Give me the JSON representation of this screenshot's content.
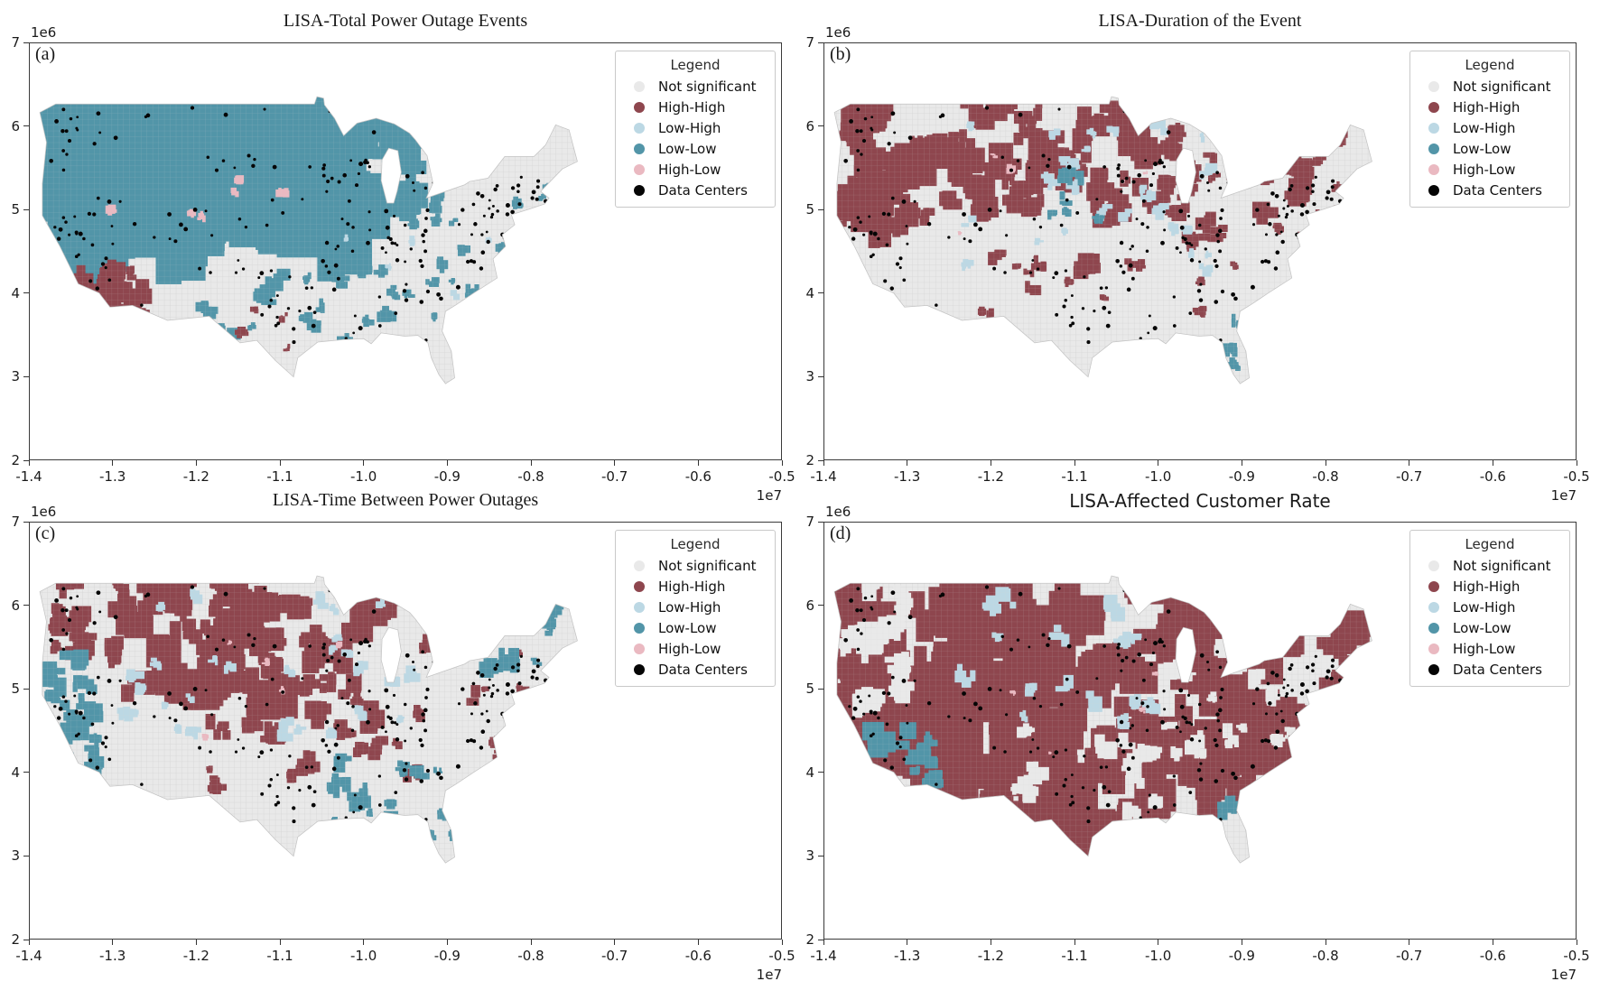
{
  "figure": {
    "background": "#ffffff",
    "axis": {
      "x_ticks": [
        "-1.4",
        "-1.3",
        "-1.2",
        "-1.1",
        "-1.0",
        "-0.9",
        "-0.8",
        "-0.7",
        "-0.6",
        "-0.5"
      ],
      "x_offset_label": "1e7",
      "y_ticks": [
        "7",
        "6",
        "5",
        "4",
        "3",
        "2"
      ],
      "y_offset_label": "1e6",
      "x_range": [
        -14000000,
        -5000000
      ],
      "y_range": [
        2000000,
        7000000
      ]
    },
    "legend": {
      "title": "Legend",
      "entries": [
        {
          "key": "not_significant",
          "label": "Not significant",
          "color": "#e9e9e9"
        },
        {
          "key": "high_high",
          "label": "High-High",
          "color": "#8e464e"
        },
        {
          "key": "low_high",
          "label": "Low-High",
          "color": "#bcd8e4"
        },
        {
          "key": "low_low",
          "label": "Low-Low",
          "color": "#5295a8"
        },
        {
          "key": "high_low",
          "label": "High-Low",
          "color": "#eab9c1"
        },
        {
          "key": "data_centers",
          "label": "Data Centers",
          "color": "#050505"
        }
      ]
    },
    "palette": {
      "not_significant": "#e9e9e9",
      "high_high": "#8e464e",
      "low_high": "#bcd8e4",
      "low_low": "#5295a8",
      "high_low": "#eab9c1",
      "data_centers": "#050505",
      "county_line": "#d2d2d2",
      "map_edge": "#c4c4c4"
    }
  },
  "chart_data": {
    "type": "heatmap",
    "subtype": "lisa-cluster-choropleth-grid",
    "grid": "2x2 panels, continental United States county maps with shared legend and identical axes",
    "panels": [
      {
        "id": "a",
        "label": "(a)",
        "title": "LISA-Total Power Outage Events",
        "title_font": "serif",
        "pattern_summary": "Huge contiguous Low-Low (teal) cluster over the Northwest, Rockies and Great Plains extending into the upper Midwest; scattered Low-Low through the Midwest, South and Appalachia; High-High (maroon) cluster in southern California; East Coast mostly not significant with dense black data-center dots; a few pink High-Low specks.",
        "cluster_regions": [
          {
            "cluster": "low_low",
            "u": 0.03,
            "v": 0.0,
            "w": 0.57,
            "h": 0.55,
            "n": 90,
            "size": 26
          },
          {
            "cluster": "low_low",
            "u": 0.5,
            "v": 0.02,
            "w": 0.22,
            "h": 0.4,
            "n": 30,
            "size": 14
          },
          {
            "cluster": "low_low",
            "u": 0.58,
            "v": 0.3,
            "w": 0.4,
            "h": 0.5,
            "n": 40,
            "size": 6
          },
          {
            "cluster": "low_low",
            "u": 0.3,
            "v": 0.58,
            "w": 0.32,
            "h": 0.28,
            "n": 16,
            "size": 7
          },
          {
            "cluster": "high_high",
            "u": 0.09,
            "v": 0.6,
            "w": 0.1,
            "h": 0.16,
            "n": 9,
            "size": 11
          },
          {
            "cluster": "high_high",
            "u": 0.25,
            "v": 0.72,
            "w": 0.45,
            "h": 0.22,
            "n": 5,
            "size": 4
          },
          {
            "cluster": "high_low",
            "u": 0.12,
            "v": 0.12,
            "w": 0.35,
            "h": 0.35,
            "n": 6,
            "size": 4
          },
          {
            "cluster": "low_high",
            "u": 0.55,
            "v": 0.35,
            "w": 0.35,
            "h": 0.35,
            "n": 5,
            "size": 3
          }
        ]
      },
      {
        "id": "b",
        "label": "(b)",
        "title": "LISA-Duration of the Event",
        "title_font": "serif",
        "pattern_summary": "Many High-High (maroon) clusters along the West Coast, across the northern plains and Midwest, and in the Northeast/Appalachia; scattered Low-High (light blue) patches through the center; small Low-Low (teal) patches in the central U.S. and Florida; remainder not significant.",
        "cluster_regions": [
          {
            "cluster": "high_high",
            "u": 0.0,
            "v": 0.02,
            "w": 0.16,
            "h": 0.45,
            "n": 28,
            "size": 15
          },
          {
            "cluster": "high_high",
            "u": 0.16,
            "v": 0.0,
            "w": 0.5,
            "h": 0.42,
            "n": 48,
            "size": 13
          },
          {
            "cluster": "high_high",
            "u": 0.62,
            "v": 0.12,
            "w": 0.34,
            "h": 0.38,
            "n": 32,
            "size": 9
          },
          {
            "cluster": "high_high",
            "u": 0.28,
            "v": 0.48,
            "w": 0.5,
            "h": 0.34,
            "n": 16,
            "size": 7
          },
          {
            "cluster": "low_high",
            "u": 0.22,
            "v": 0.08,
            "w": 0.48,
            "h": 0.52,
            "n": 26,
            "size": 6
          },
          {
            "cluster": "low_low",
            "u": 0.4,
            "v": 0.26,
            "w": 0.14,
            "h": 0.2,
            "n": 8,
            "size": 8
          },
          {
            "cluster": "low_low",
            "u": 0.72,
            "v": 0.76,
            "w": 0.06,
            "h": 0.2,
            "n": 7,
            "size": 6
          },
          {
            "cluster": "high_low",
            "u": 0.2,
            "v": 0.2,
            "w": 0.5,
            "h": 0.4,
            "n": 5,
            "size": 3
          }
        ]
      },
      {
        "id": "c",
        "label": "(c)",
        "title": "LISA-Time Between Power Outages",
        "title_font": "serif",
        "pattern_summary": "High-High (maroon) blocks across the northern plains, Midwest and scattered through the center/east; Low-Low (teal) along the California coast, the Gulf Coast/Florida and New England; scattered Low-High (light blue) patches; remainder not significant.",
        "cluster_regions": [
          {
            "cluster": "high_high",
            "u": 0.14,
            "v": 0.0,
            "w": 0.52,
            "h": 0.42,
            "n": 55,
            "size": 15
          },
          {
            "cluster": "high_high",
            "u": 0.02,
            "v": 0.02,
            "w": 0.14,
            "h": 0.28,
            "n": 12,
            "size": 9
          },
          {
            "cluster": "high_high",
            "u": 0.3,
            "v": 0.44,
            "w": 0.42,
            "h": 0.3,
            "n": 20,
            "size": 9
          },
          {
            "cluster": "high_high",
            "u": 0.66,
            "v": 0.24,
            "w": 0.3,
            "h": 0.38,
            "n": 16,
            "size": 6
          },
          {
            "cluster": "low_low",
            "u": 0.0,
            "v": 0.28,
            "w": 0.11,
            "h": 0.5,
            "n": 22,
            "size": 9
          },
          {
            "cluster": "low_low",
            "u": 0.52,
            "v": 0.64,
            "w": 0.26,
            "h": 0.3,
            "n": 16,
            "size": 7
          },
          {
            "cluster": "low_low",
            "u": 0.84,
            "v": 0.1,
            "w": 0.15,
            "h": 0.26,
            "n": 10,
            "size": 7
          },
          {
            "cluster": "low_high",
            "u": 0.14,
            "v": 0.06,
            "w": 0.55,
            "h": 0.52,
            "n": 30,
            "size": 6
          },
          {
            "cluster": "high_low",
            "u": 0.3,
            "v": 0.2,
            "w": 0.4,
            "h": 0.4,
            "n": 5,
            "size": 3
          }
        ]
      },
      {
        "id": "d",
        "label": "(d)",
        "title": "LISA-Affected Customer Rate",
        "title_font": "sans",
        "pattern_summary": "High-High (maroon) dominates nearly the entire country; not-significant pockets in the Pacific Northwest, Texas/Oklahoma and the eastern seaboard; Low-High (light blue) patches in the plains and west; Low-Low (teal) cluster on the southern California coast and small ones in Florida.",
        "cluster_regions": [
          {
            "cluster": "high_high",
            "u": 0.0,
            "v": 0.0,
            "w": 0.96,
            "h": 0.88,
            "n": 130,
            "size": 24
          },
          {
            "cluster": "not_significant",
            "u": 0.02,
            "v": 0.04,
            "w": 0.13,
            "h": 0.42,
            "n": 16,
            "size": 10
          },
          {
            "cluster": "not_significant",
            "u": 0.3,
            "v": 0.52,
            "w": 0.3,
            "h": 0.3,
            "n": 10,
            "size": 9
          },
          {
            "cluster": "not_significant",
            "u": 0.58,
            "v": 0.22,
            "w": 0.34,
            "h": 0.45,
            "n": 22,
            "size": 8
          },
          {
            "cluster": "low_high",
            "u": 0.22,
            "v": 0.08,
            "w": 0.38,
            "h": 0.45,
            "n": 15,
            "size": 9
          },
          {
            "cluster": "low_low",
            "u": 0.07,
            "v": 0.56,
            "w": 0.12,
            "h": 0.16,
            "n": 8,
            "size": 10
          },
          {
            "cluster": "low_low",
            "u": 0.72,
            "v": 0.78,
            "w": 0.05,
            "h": 0.16,
            "n": 4,
            "size": 5
          },
          {
            "cluster": "high_low",
            "u": 0.2,
            "v": 0.3,
            "w": 0.5,
            "h": 0.4,
            "n": 4,
            "size": 3
          }
        ]
      }
    ],
    "data_centers": {
      "label": "Data Centers",
      "color": "#050505",
      "note": "Identical black dot overlay on all four panels; densest along the California coast, the Northeast corridor, the Great Lakes cities, Texas and the Southeast/Florida.",
      "regions": [
        {
          "u": 0.02,
          "v": 0.4,
          "w": 0.12,
          "h": 0.38,
          "n": 40
        },
        {
          "u": 0.02,
          "v": 0.04,
          "w": 0.1,
          "h": 0.22,
          "n": 14
        },
        {
          "u": 0.8,
          "v": 0.28,
          "w": 0.17,
          "h": 0.24,
          "n": 55
        },
        {
          "u": 0.52,
          "v": 0.22,
          "w": 0.22,
          "h": 0.32,
          "n": 40
        },
        {
          "u": 0.36,
          "v": 0.56,
          "w": 0.24,
          "h": 0.32,
          "n": 32
        },
        {
          "u": 0.62,
          "v": 0.48,
          "w": 0.28,
          "h": 0.42,
          "n": 38
        },
        {
          "u": 0.12,
          "v": 0.12,
          "w": 0.4,
          "h": 0.55,
          "n": 22
        },
        {
          "u": 0.0,
          "v": 0.0,
          "w": 1.0,
          "h": 0.95,
          "n": 60
        }
      ]
    }
  }
}
